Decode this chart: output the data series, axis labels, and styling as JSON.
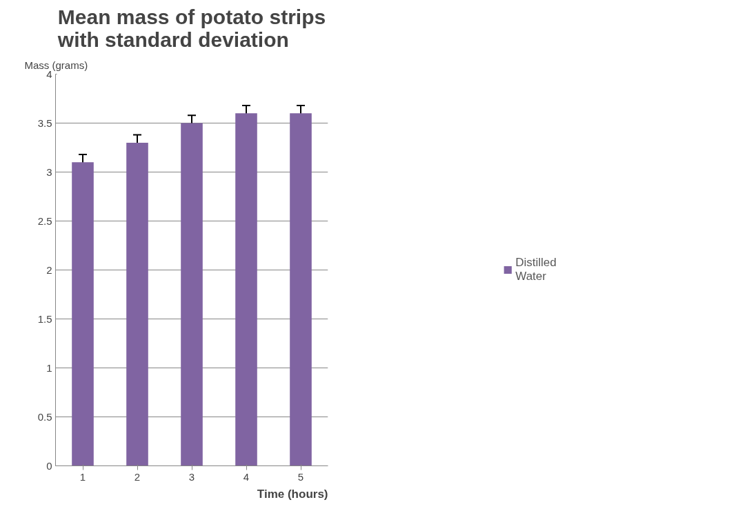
{
  "chart_data": {
    "type": "bar",
    "title": "Mean mass of potato strips with standard deviation",
    "xlabel": "Time (hours)",
    "ylabel": "Mass (grams)",
    "categories": [
      "1",
      "2",
      "3",
      "4",
      "5"
    ],
    "series": [
      {
        "name": "Distilled Water",
        "color": "#8064a2",
        "values": [
          3.1,
          3.3,
          3.5,
          3.6,
          3.6
        ],
        "errors": [
          0.08,
          0.08,
          0.08,
          0.08,
          0.08
        ]
      }
    ],
    "ylim": [
      0,
      4
    ],
    "yticks": [
      0,
      0.5,
      1,
      1.5,
      2,
      2.5,
      3,
      3.5,
      4
    ],
    "grid": "y",
    "legend": "right"
  }
}
